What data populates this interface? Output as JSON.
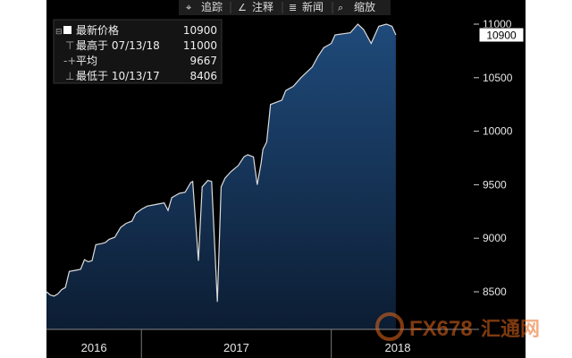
{
  "toolbar": {
    "track_label": "追踪",
    "annotate_label": "注释",
    "news_label": "新闻",
    "zoom_label": "缩放"
  },
  "legend": {
    "last": {
      "label": "最新价格",
      "value": "10900"
    },
    "high": {
      "label": "最高于 07/13/18",
      "value": "11000"
    },
    "avg": {
      "label": "平均",
      "value": "9667"
    },
    "low": {
      "label": "最低于 10/13/17",
      "value": "8406"
    }
  },
  "last_value_tag": "10900",
  "watermark": {
    "brand": "FX678",
    "cn": "汇通网"
  },
  "colors": {
    "background": "#000000",
    "fill_top": "#1f4a7a",
    "fill_bottom": "#0c1d33",
    "line": "#dcdcdc",
    "tag": "#ffffff"
  },
  "chart_data": {
    "type": "area",
    "title": "",
    "xlabel": "",
    "ylabel": "",
    "ylim": [
      8200,
      11000
    ],
    "yticks": [
      8500,
      9000,
      9500,
      10000,
      10500,
      11000
    ],
    "xticks": [
      {
        "label": "2016",
        "x": 2016.75
      },
      {
        "label": "2017",
        "x": 2017.5
      },
      {
        "label": "2018",
        "x": 2018.35
      }
    ],
    "xlim": [
      2016.5,
      2018.75
    ],
    "legend_position": "top-left",
    "grid": false,
    "series": [
      {
        "values": [
          [
            2016.5,
            8500
          ],
          [
            2016.52,
            8470
          ],
          [
            2016.54,
            8460
          ],
          [
            2016.56,
            8480
          ],
          [
            2016.58,
            8520
          ],
          [
            2016.6,
            8540
          ],
          [
            2016.62,
            8690
          ],
          [
            2016.65,
            8700
          ],
          [
            2016.68,
            8710
          ],
          [
            2016.7,
            8800
          ],
          [
            2016.72,
            8780
          ],
          [
            2016.74,
            8790
          ],
          [
            2016.76,
            8940
          ],
          [
            2016.79,
            8950
          ],
          [
            2016.81,
            8960
          ],
          [
            2016.83,
            8990
          ],
          [
            2016.86,
            9010
          ],
          [
            2016.89,
            9100
          ],
          [
            2016.92,
            9140
          ],
          [
            2016.95,
            9160
          ],
          [
            2016.97,
            9230
          ],
          [
            2017.0,
            9270
          ],
          [
            2017.03,
            9300
          ],
          [
            2017.06,
            9310
          ],
          [
            2017.09,
            9320
          ],
          [
            2017.12,
            9330
          ],
          [
            2017.14,
            9260
          ],
          [
            2017.16,
            9380
          ],
          [
            2017.18,
            9400
          ],
          [
            2017.2,
            9420
          ],
          [
            2017.23,
            9430
          ],
          [
            2017.26,
            9520
          ],
          [
            2017.27,
            9530
          ],
          [
            2017.3,
            8790
          ],
          [
            2017.32,
            9480
          ],
          [
            2017.35,
            9540
          ],
          [
            2017.37,
            9530
          ],
          [
            2017.4,
            8406
          ],
          [
            2017.42,
            9480
          ],
          [
            2017.44,
            9560
          ],
          [
            2017.47,
            9620
          ],
          [
            2017.51,
            9680
          ],
          [
            2017.54,
            9760
          ],
          [
            2017.56,
            9780
          ],
          [
            2017.59,
            9760
          ],
          [
            2017.61,
            9500
          ],
          [
            2017.63,
            9700
          ],
          [
            2017.64,
            9830
          ],
          [
            2017.66,
            9900
          ],
          [
            2017.68,
            10250
          ],
          [
            2017.71,
            10270
          ],
          [
            2017.74,
            10290
          ],
          [
            2017.76,
            10380
          ],
          [
            2017.8,
            10420
          ],
          [
            2017.84,
            10500
          ],
          [
            2017.87,
            10550
          ],
          [
            2017.9,
            10600
          ],
          [
            2017.93,
            10700
          ],
          [
            2017.96,
            10780
          ],
          [
            2018.0,
            10820
          ],
          [
            2018.02,
            10900
          ],
          [
            2018.06,
            10910
          ],
          [
            2018.1,
            10920
          ],
          [
            2018.14,
            11000
          ],
          [
            2018.17,
            10950
          ],
          [
            2018.21,
            10820
          ],
          [
            2018.25,
            10980
          ],
          [
            2018.29,
            11000
          ],
          [
            2018.32,
            10980
          ],
          [
            2018.34,
            10900
          ]
        ]
      }
    ]
  }
}
